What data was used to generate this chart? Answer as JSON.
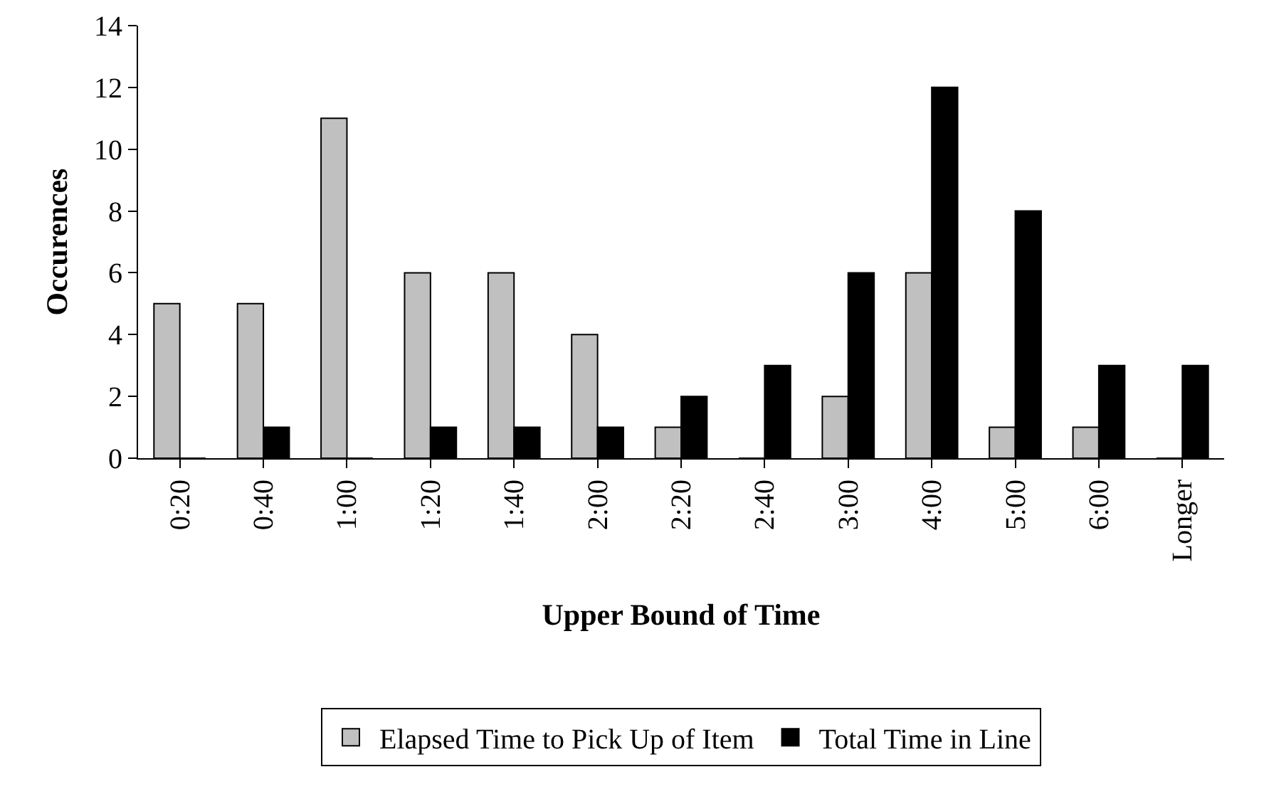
{
  "chart_data": {
    "type": "bar",
    "xlabel": "Upper Bound of Time",
    "ylabel": "Occurences",
    "categories": [
      "0:20",
      "0:40",
      "1:00",
      "1:20",
      "1:40",
      "2:00",
      "2:20",
      "2:40",
      "3:00",
      "4:00",
      "5:00",
      "6:00",
      "Longer"
    ],
    "series": [
      {
        "name": "Elapsed Time to Pick Up of Item",
        "color": "#c0c0c0",
        "values": [
          5,
          5,
          11,
          6,
          6,
          4,
          1,
          0,
          2,
          6,
          1,
          1,
          0
        ]
      },
      {
        "name": "Total Time in Line",
        "color": "#000000",
        "values": [
          0,
          1,
          0,
          1,
          1,
          1,
          2,
          3,
          6,
          12,
          8,
          3,
          3
        ]
      }
    ],
    "ylim": [
      0,
      14
    ],
    "yticks": [
      0,
      2,
      4,
      6,
      8,
      10,
      12,
      14
    ],
    "grid": false,
    "legend": "bottom"
  }
}
